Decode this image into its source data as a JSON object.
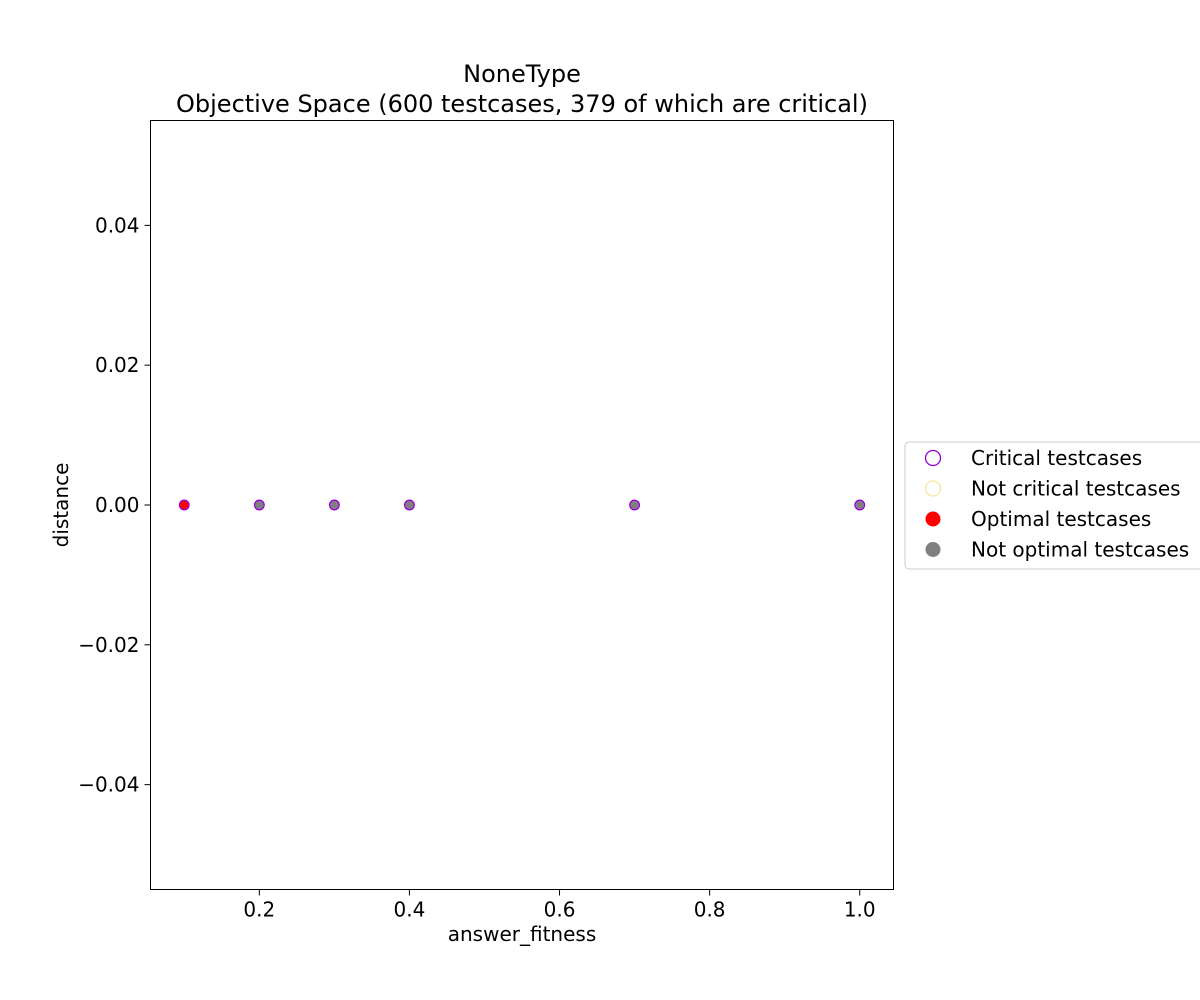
{
  "chart_data": {
    "type": "scatter",
    "title": "NoneType",
    "subtitle": "Objective Space (600 testcases, 379 of which are critical)",
    "xlabel": "answer_fitness",
    "ylabel": "distance",
    "xlim": [
      0.055,
      1.045
    ],
    "ylim": [
      -0.055,
      0.055
    ],
    "xticks": [
      0.2,
      0.4,
      0.6,
      0.8,
      1.0
    ],
    "xtick_labels": [
      "0.2",
      "0.4",
      "0.6",
      "0.8",
      "1.0"
    ],
    "yticks": [
      0.04,
      0.02,
      0.0,
      -0.02,
      -0.04
    ],
    "ytick_labels": [
      "0.04",
      "0.02",
      "0.00",
      "−0.02",
      "−0.04"
    ],
    "grid": false,
    "legend_position": "right-outside",
    "series": [
      {
        "name": "Critical testcases",
        "marker": "hollow-circle",
        "color": "#9400d3",
        "points": [
          [
            0.1,
            0.0
          ],
          [
            0.2,
            0.0
          ],
          [
            0.3,
            0.0
          ],
          [
            0.4,
            0.0
          ],
          [
            0.7,
            0.0
          ],
          [
            1.0,
            0.0
          ]
        ]
      },
      {
        "name": "Not critical testcases",
        "marker": "hollow-circle",
        "color": "#f5e6a0",
        "points": []
      },
      {
        "name": "Optimal testcases",
        "marker": "filled-circle",
        "color": "#ff0000",
        "points": [
          [
            0.1,
            0.0
          ]
        ]
      },
      {
        "name": "Not optimal testcases",
        "marker": "filled-circle",
        "color": "#808080",
        "points": [
          [
            0.2,
            0.0
          ],
          [
            0.3,
            0.0
          ],
          [
            0.4,
            0.0
          ],
          [
            0.7,
            0.0
          ],
          [
            1.0,
            0.0
          ]
        ]
      }
    ]
  }
}
